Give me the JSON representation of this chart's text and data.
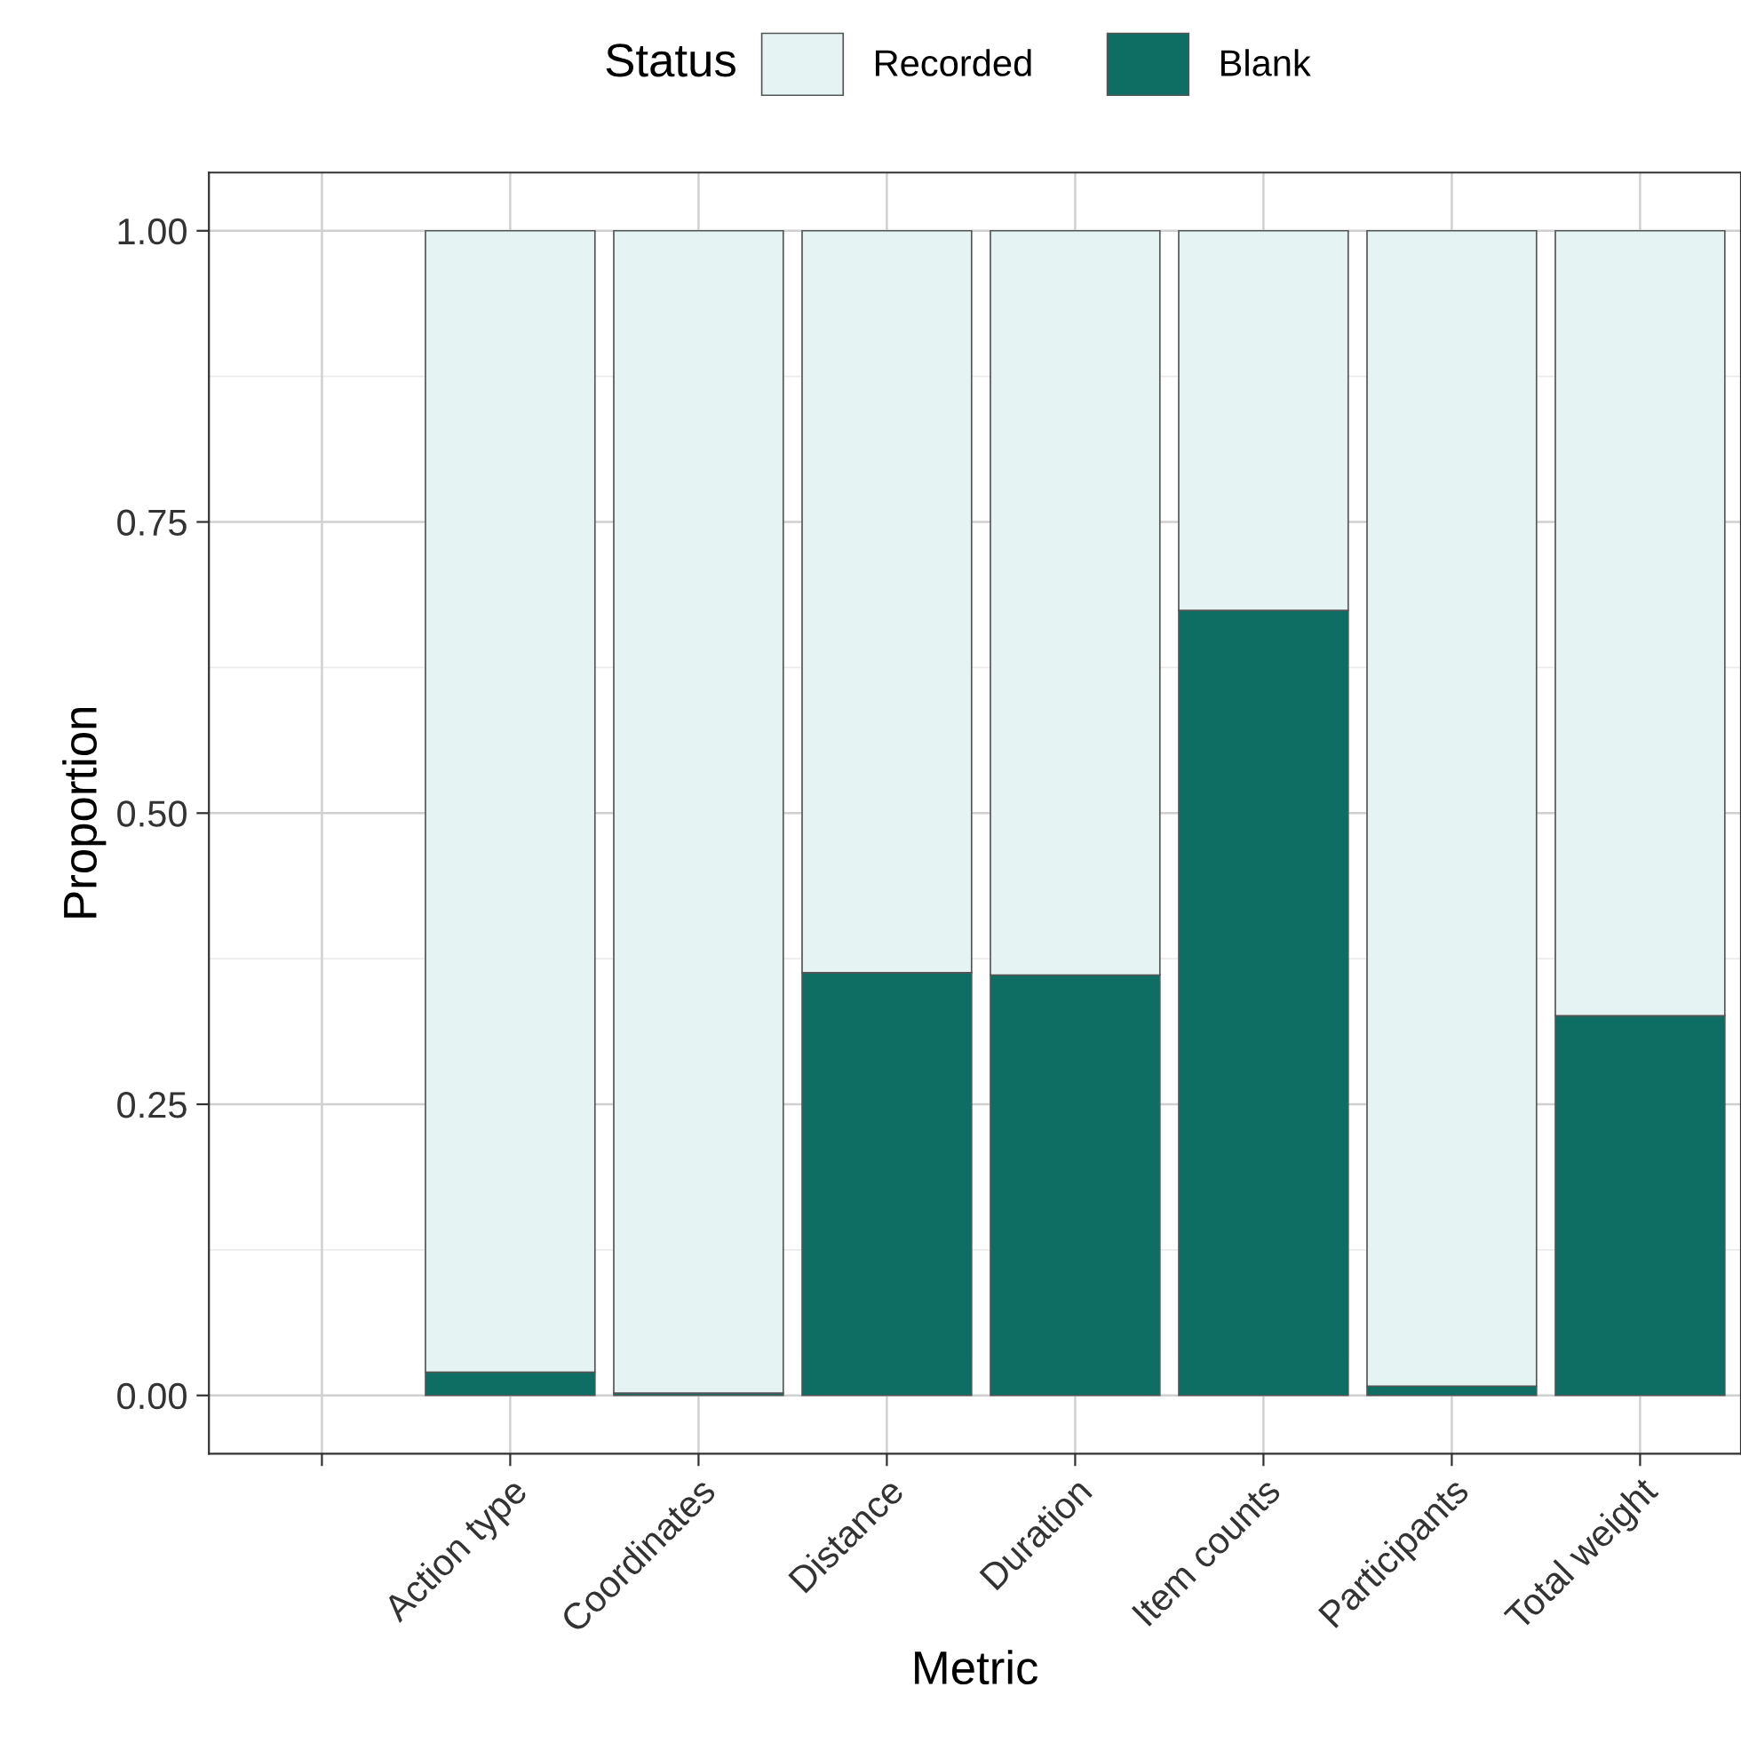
{
  "chart_data": {
    "type": "bar",
    "stacked": true,
    "xlabel": "Metric",
    "ylabel": "Proportion",
    "legend_title": "Status",
    "legend": "top",
    "categories": [
      null,
      "Action type",
      "Coordinates",
      "Distance",
      "Duration",
      "Item counts",
      "Participants",
      "Total weight"
    ],
    "series": [
      {
        "name": "Blank",
        "color": "#0f6e64",
        "values": [
          null,
          0.02,
          0.002,
          0.363,
          0.361,
          0.674,
          0.008,
          0.326
        ]
      },
      {
        "name": "Recorded",
        "color": "#e5f3f2",
        "values": [
          null,
          0.98,
          0.998,
          0.637,
          0.639,
          0.326,
          0.992,
          0.674
        ]
      }
    ],
    "ylim": [
      -0.05,
      1.05
    ],
    "yticks": [
      {
        "value": 0,
        "label": "0.00"
      },
      {
        "value": 0.25,
        "label": "0.25"
      },
      {
        "value": 0.5,
        "label": "0.50"
      },
      {
        "value": 0.75,
        "label": "0.75"
      },
      {
        "value": 1,
        "label": "1.00"
      }
    ],
    "grid": true
  }
}
